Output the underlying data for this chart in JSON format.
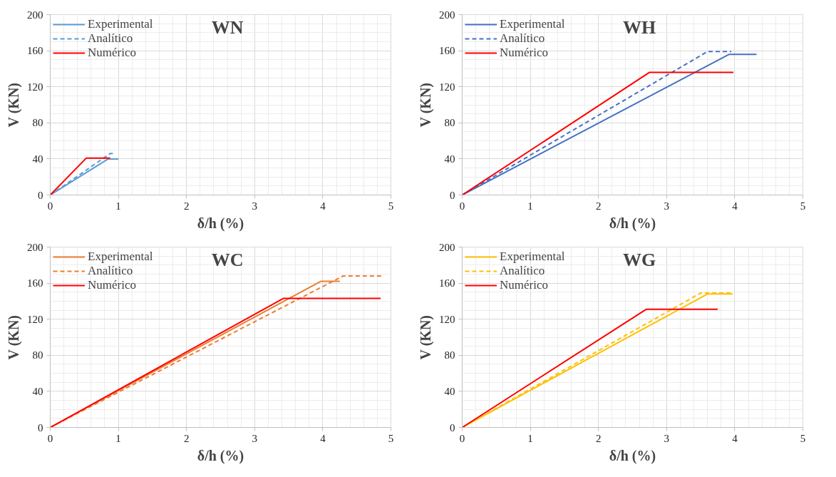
{
  "chart_data": [
    {
      "type": "line",
      "title": "WN",
      "xlabel": "δ/h (%)",
      "ylabel": "V (KN)",
      "xlim": [
        0,
        5
      ],
      "ylim": [
        0,
        200
      ],
      "xticks": [
        0,
        1,
        2,
        3,
        4,
        5
      ],
      "yticks": [
        0,
        40,
        80,
        120,
        160,
        200
      ],
      "grid": true,
      "legend": "top left",
      "series": [
        {
          "name": "Experimental",
          "color": "#5b9bd5",
          "line_style": "solid",
          "x": [
            0,
            0.85,
            1.0
          ],
          "values": [
            0,
            40,
            40
          ]
        },
        {
          "name": "Analítico",
          "color": "#5b9bd5",
          "line_style": "dashed",
          "x": [
            0,
            0.88,
            0.92
          ],
          "values": [
            0,
            46,
            46
          ]
        },
        {
          "name": "Numérico",
          "color": "#ff0000",
          "line_style": "solid",
          "x": [
            0,
            0.53,
            0.88
          ],
          "values": [
            0,
            41,
            41
          ]
        }
      ]
    },
    {
      "type": "line",
      "title": "WH",
      "xlabel": "δ/h (%)",
      "ylabel": "V (KN)",
      "xlim": [
        0,
        5
      ],
      "ylim": [
        0,
        200
      ],
      "xticks": [
        0,
        1,
        2,
        3,
        4,
        5
      ],
      "yticks": [
        0,
        40,
        80,
        120,
        160,
        200
      ],
      "grid": true,
      "legend": "top left",
      "series": [
        {
          "name": "Experimental",
          "color": "#4472c4",
          "line_style": "solid",
          "x": [
            0,
            3.92,
            4.32
          ],
          "values": [
            0,
            156,
            156
          ]
        },
        {
          "name": "Analítico",
          "color": "#4472c4",
          "line_style": "dashed",
          "x": [
            0,
            3.6,
            3.95
          ],
          "values": [
            0,
            159,
            159
          ]
        },
        {
          "name": "Numérico",
          "color": "#ff0000",
          "line_style": "solid",
          "x": [
            0,
            2.75,
            3.98
          ],
          "values": [
            0,
            136,
            136
          ]
        }
      ]
    },
    {
      "type": "line",
      "title": "WC",
      "xlabel": "δ/h (%)",
      "ylabel": "V (KN)",
      "xlim": [
        0,
        5
      ],
      "ylim": [
        0,
        200
      ],
      "xticks": [
        0,
        1,
        2,
        3,
        4,
        5
      ],
      "yticks": [
        0,
        40,
        80,
        120,
        160,
        200
      ],
      "grid": true,
      "legend": "top left",
      "series": [
        {
          "name": "Experimental",
          "color": "#ed7d31",
          "line_style": "solid",
          "x": [
            0,
            3.97,
            4.25
          ],
          "values": [
            0,
            162,
            162
          ]
        },
        {
          "name": "Analítico",
          "color": "#ed7d31",
          "line_style": "dashed",
          "x": [
            0,
            4.3,
            4.87
          ],
          "values": [
            0,
            168,
            168
          ]
        },
        {
          "name": "Numérico",
          "color": "#ff0000",
          "line_style": "solid",
          "x": [
            0,
            3.42,
            4.85
          ],
          "values": [
            0,
            143,
            143
          ]
        }
      ]
    },
    {
      "type": "line",
      "title": "WG",
      "xlabel": "δ/h (%)",
      "ylabel": "V (KN)",
      "xlim": [
        0,
        5
      ],
      "ylim": [
        0,
        200
      ],
      "xticks": [
        0,
        1,
        2,
        3,
        4,
        5
      ],
      "yticks": [
        0,
        40,
        80,
        120,
        160,
        200
      ],
      "grid": true,
      "legend": "top left",
      "series": [
        {
          "name": "Experimental",
          "color": "#ffc000",
          "line_style": "solid",
          "x": [
            0,
            3.6,
            3.97
          ],
          "values": [
            0,
            148,
            148
          ]
        },
        {
          "name": "Analítico",
          "color": "#ffc000",
          "line_style": "dashed",
          "x": [
            0,
            3.5,
            3.95
          ],
          "values": [
            0,
            149,
            149
          ]
        },
        {
          "name": "Numérico",
          "color": "#ff0000",
          "line_style": "solid",
          "x": [
            0,
            2.7,
            3.75
          ],
          "values": [
            0,
            131,
            131
          ]
        }
      ]
    }
  ]
}
